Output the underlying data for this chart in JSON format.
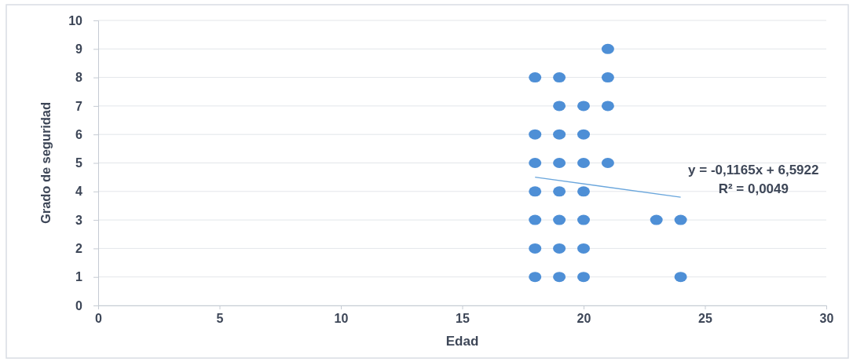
{
  "chart_data": {
    "type": "scatter",
    "xlabel": "Edad",
    "ylabel": "Grado de seguridad",
    "xlim": [
      0,
      30
    ],
    "xticks": [
      0,
      5,
      10,
      15,
      20,
      25,
      30
    ],
    "ylim": [
      0,
      10
    ],
    "yticks": [
      0,
      1,
      2,
      3,
      4,
      5,
      6,
      7,
      8,
      9,
      10
    ],
    "grid": "y",
    "series": [
      {
        "color": "#4e8fd6",
        "marker": "circle",
        "x": [
          18,
          18,
          18,
          18,
          18,
          18,
          18,
          19,
          19,
          19,
          19,
          19,
          19,
          19,
          19,
          20,
          20,
          20,
          20,
          20,
          20,
          20,
          21,
          21,
          21,
          21,
          23,
          24,
          24
        ],
        "values": [
          8,
          6,
          5,
          4,
          3,
          2,
          1,
          8,
          7,
          6,
          5,
          4,
          3,
          2,
          1,
          7,
          6,
          5,
          4,
          3,
          2,
          1,
          9,
          8,
          7,
          5,
          3,
          3,
          1
        ]
      },
      {
        "type": "line",
        "color": "#6aa6dc",
        "marker": "none",
        "x": [
          18,
          24
        ],
        "values": [
          4.5,
          3.8
        ]
      }
    ],
    "annotations": [
      "y = -0,1165x + 6,5922",
      "R² = 0,0049"
    ]
  }
}
